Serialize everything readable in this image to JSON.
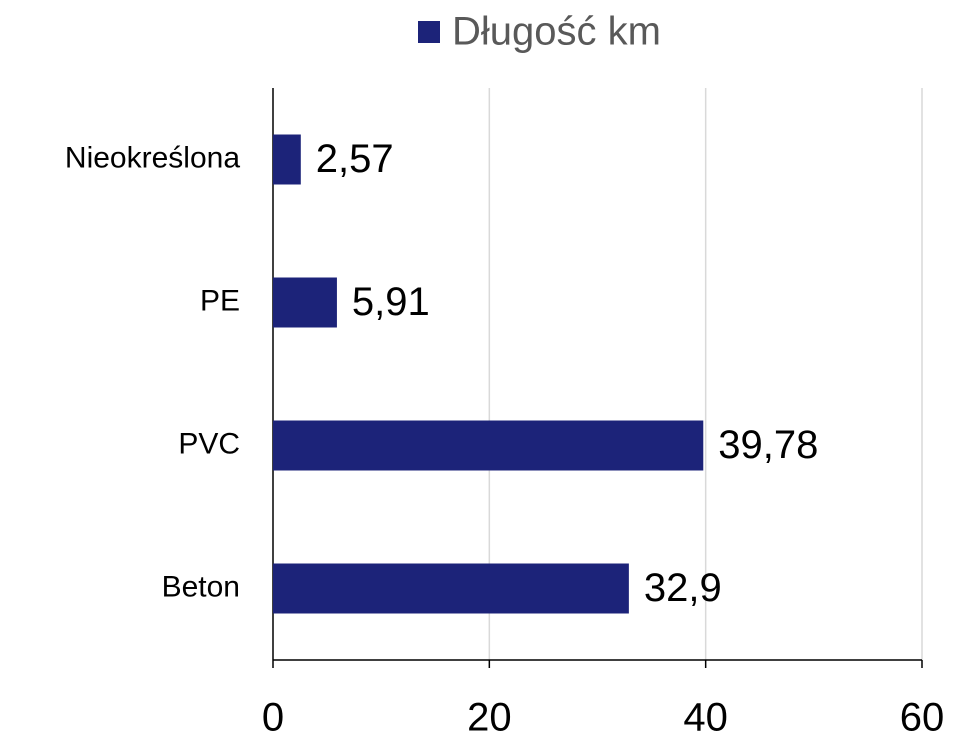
{
  "chart_data": {
    "type": "bar",
    "orientation": "horizontal",
    "categories": [
      "Nieokreślona",
      "PE",
      "PVC",
      "Beton"
    ],
    "series": [
      {
        "name": "Długość km",
        "color": "#1c2379",
        "values": [
          2.57,
          5.91,
          39.78,
          32.9
        ],
        "value_labels": [
          "2,57",
          "5,91",
          "39,78",
          "32,9"
        ]
      }
    ],
    "xlim": [
      0,
      60
    ],
    "xticks": [
      0,
      20,
      40,
      60
    ],
    "grid": true,
    "legend": "top"
  }
}
